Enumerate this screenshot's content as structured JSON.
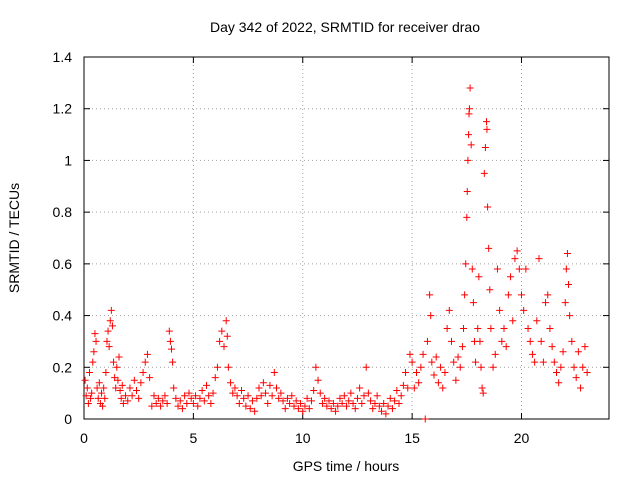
{
  "chart_data": {
    "type": "scatter",
    "title": "Day 342 of 2022, SRMTID for receiver drao",
    "xlabel": "GPS time / hours",
    "ylabel": "SRMTID / TECUs",
    "xlim": [
      0,
      24
    ],
    "ylim": [
      0,
      1.4
    ],
    "xticks": [
      0,
      5,
      10,
      15,
      20
    ],
    "xtick_labels": [
      "0",
      "5",
      "10",
      "15",
      "20"
    ],
    "yticks": [
      0,
      0.2,
      0.4,
      0.6,
      0.8,
      1,
      1.2,
      1.4
    ],
    "ytick_labels": [
      "0",
      "0.2",
      "0.4",
      "0.6",
      "0.8",
      "1",
      "1.2",
      "1.4"
    ],
    "grid": true,
    "marker": "+",
    "color": "#ff0000",
    "series": [
      {
        "name": "SRMTID",
        "points": [
          [
            0.05,
            0.15
          ],
          [
            0.1,
            0.09
          ],
          [
            0.15,
            0.12
          ],
          [
            0.2,
            0.06
          ],
          [
            0.25,
            0.18
          ],
          [
            0.3,
            0.08
          ],
          [
            0.35,
            0.1
          ],
          [
            0.4,
            0.22
          ],
          [
            0.45,
            0.26
          ],
          [
            0.5,
            0.33
          ],
          [
            0.55,
            0.3
          ],
          [
            0.6,
            0.12
          ],
          [
            0.65,
            0.08
          ],
          [
            0.7,
            0.14
          ],
          [
            0.75,
            0.06
          ],
          [
            0.8,
            0.1
          ],
          [
            0.85,
            0.05
          ],
          [
            0.9,
            0.12
          ],
          [
            0.95,
            0.08
          ],
          [
            1.0,
            0.18
          ],
          [
            1.05,
            0.3
          ],
          [
            1.1,
            0.34
          ],
          [
            1.15,
            0.28
          ],
          [
            1.2,
            0.38
          ],
          [
            1.25,
            0.42
          ],
          [
            1.3,
            0.36
          ],
          [
            1.35,
            0.22
          ],
          [
            1.4,
            0.16
          ],
          [
            1.45,
            0.12
          ],
          [
            1.5,
            0.2
          ],
          [
            1.55,
            0.15
          ],
          [
            1.6,
            0.24
          ],
          [
            1.65,
            0.11
          ],
          [
            1.7,
            0.08
          ],
          [
            1.75,
            0.13
          ],
          [
            1.8,
            0.06
          ],
          [
            1.9,
            0.09
          ],
          [
            2.0,
            0.07
          ],
          [
            2.1,
            0.12
          ],
          [
            2.2,
            0.09
          ],
          [
            2.3,
            0.15
          ],
          [
            2.4,
            0.11
          ],
          [
            2.5,
            0.08
          ],
          [
            2.6,
            0.14
          ],
          [
            2.7,
            0.18
          ],
          [
            2.8,
            0.22
          ],
          [
            2.9,
            0.25
          ],
          [
            3.0,
            0.16
          ],
          [
            3.1,
            0.05
          ],
          [
            3.2,
            0.09
          ],
          [
            3.3,
            0.06
          ],
          [
            3.4,
            0.08
          ],
          [
            3.5,
            0.05
          ],
          [
            3.6,
            0.07
          ],
          [
            3.7,
            0.09
          ],
          [
            3.8,
            0.06
          ],
          [
            3.9,
            0.34
          ],
          [
            3.95,
            0.3
          ],
          [
            4.0,
            0.27
          ],
          [
            4.05,
            0.22
          ],
          [
            4.1,
            0.12
          ],
          [
            4.2,
            0.08
          ],
          [
            4.3,
            0.05
          ],
          [
            4.4,
            0.07
          ],
          [
            4.5,
            0.04
          ],
          [
            4.6,
            0.09
          ],
          [
            4.7,
            0.06
          ],
          [
            4.8,
            0.1
          ],
          [
            4.9,
            0.08
          ],
          [
            5.0,
            0.06
          ],
          [
            5.1,
            0.09
          ],
          [
            5.2,
            0.05
          ],
          [
            5.3,
            0.08
          ],
          [
            5.4,
            0.11
          ],
          [
            5.5,
            0.07
          ],
          [
            5.6,
            0.13
          ],
          [
            5.7,
            0.09
          ],
          [
            5.8,
            0.06
          ],
          [
            5.9,
            0.1
          ],
          [
            6.0,
            0.16
          ],
          [
            6.1,
            0.2
          ],
          [
            6.2,
            0.3
          ],
          [
            6.3,
            0.34
          ],
          [
            6.4,
            0.28
          ],
          [
            6.5,
            0.38
          ],
          [
            6.55,
            0.32
          ],
          [
            6.6,
            0.2
          ],
          [
            6.7,
            0.14
          ],
          [
            6.8,
            0.1
          ],
          [
            6.9,
            0.12
          ],
          [
            7.0,
            0.09
          ],
          [
            7.1,
            0.06
          ],
          [
            7.2,
            0.11
          ],
          [
            7.3,
            0.08
          ],
          [
            7.4,
            0.05
          ],
          [
            7.5,
            0.09
          ],
          [
            7.6,
            0.04
          ],
          [
            7.7,
            0.07
          ],
          [
            7.8,
            0.03
          ],
          [
            7.9,
            0.08
          ],
          [
            8.0,
            0.12
          ],
          [
            8.1,
            0.09
          ],
          [
            8.2,
            0.14
          ],
          [
            8.3,
            0.1
          ],
          [
            8.4,
            0.06
          ],
          [
            8.5,
            0.13
          ],
          [
            8.6,
            0.09
          ],
          [
            8.7,
            0.18
          ],
          [
            8.8,
            0.12
          ],
          [
            8.9,
            0.08
          ],
          [
            9.0,
            0.1
          ],
          [
            9.1,
            0.07
          ],
          [
            9.2,
            0.04
          ],
          [
            9.3,
            0.08
          ],
          [
            9.4,
            0.06
          ],
          [
            9.5,
            0.09
          ],
          [
            9.6,
            0.05
          ],
          [
            9.7,
            0.07
          ],
          [
            9.8,
            0.04
          ],
          [
            9.9,
            0.06
          ],
          [
            10.0,
            0.03
          ],
          [
            10.1,
            0.05
          ],
          [
            10.2,
            0.08
          ],
          [
            10.3,
            0.04
          ],
          [
            10.4,
            0.07
          ],
          [
            10.5,
            0.11
          ],
          [
            10.6,
            0.2
          ],
          [
            10.7,
            0.15
          ],
          [
            10.8,
            0.1
          ],
          [
            10.9,
            0.06
          ],
          [
            11.0,
            0.08
          ],
          [
            11.1,
            0.05
          ],
          [
            11.2,
            0.07
          ],
          [
            11.3,
            0.04
          ],
          [
            11.4,
            0.06
          ],
          [
            11.5,
            0.03
          ],
          [
            11.6,
            0.05
          ],
          [
            11.7,
            0.08
          ],
          [
            11.8,
            0.06
          ],
          [
            11.9,
            0.09
          ],
          [
            12.0,
            0.05
          ],
          [
            12.1,
            0.07
          ],
          [
            12.2,
            0.1
          ],
          [
            12.3,
            0.06
          ],
          [
            12.4,
            0.04
          ],
          [
            12.5,
            0.08
          ],
          [
            12.6,
            0.12
          ],
          [
            12.7,
            0.06
          ],
          [
            12.8,
            0.09
          ],
          [
            12.9,
            0.2
          ],
          [
            13.0,
            0.1
          ],
          [
            13.1,
            0.07
          ],
          [
            13.2,
            0.04
          ],
          [
            13.3,
            0.06
          ],
          [
            13.4,
            0.09
          ],
          [
            13.5,
            0.05
          ],
          [
            13.6,
            0.03
          ],
          [
            13.7,
            0.06
          ],
          [
            13.8,
            0.02
          ],
          [
            13.9,
            0.05
          ],
          [
            14.0,
            0.08
          ],
          [
            14.1,
            0.04
          ],
          [
            14.2,
            0.07
          ],
          [
            14.3,
            0.11
          ],
          [
            14.4,
            0.06
          ],
          [
            14.5,
            0.09
          ],
          [
            14.6,
            0.13
          ],
          [
            14.7,
            0.18
          ],
          [
            14.8,
            0.12
          ],
          [
            14.9,
            0.25
          ],
          [
            15.0,
            0.22
          ],
          [
            15.1,
            0.12
          ],
          [
            15.2,
            0.18
          ],
          [
            15.3,
            0.14
          ],
          [
            15.4,
            0.2
          ],
          [
            15.5,
            0.25
          ],
          [
            15.6,
            0.0
          ],
          [
            15.7,
            0.3
          ],
          [
            15.8,
            0.48
          ],
          [
            15.85,
            0.4
          ],
          [
            15.9,
            0.22
          ],
          [
            16.0,
            0.17
          ],
          [
            16.1,
            0.24
          ],
          [
            16.2,
            0.14
          ],
          [
            16.3,
            0.2
          ],
          [
            16.4,
            0.12
          ],
          [
            16.5,
            0.18
          ],
          [
            16.6,
            0.35
          ],
          [
            16.7,
            0.42
          ],
          [
            16.8,
            0.3
          ],
          [
            16.9,
            0.22
          ],
          [
            17.0,
            0.15
          ],
          [
            17.1,
            0.24
          ],
          [
            17.2,
            0.2
          ],
          [
            17.3,
            0.28
          ],
          [
            17.35,
            0.35
          ],
          [
            17.4,
            0.48
          ],
          [
            17.45,
            0.6
          ],
          [
            17.5,
            0.78
          ],
          [
            17.52,
            0.88
          ],
          [
            17.55,
            1.0
          ],
          [
            17.58,
            1.1
          ],
          [
            17.6,
            1.18
          ],
          [
            17.62,
            1.2
          ],
          [
            17.65,
            1.28
          ],
          [
            17.7,
            1.06
          ],
          [
            17.75,
            0.58
          ],
          [
            17.8,
            0.45
          ],
          [
            17.85,
            0.3
          ],
          [
            17.9,
            0.22
          ],
          [
            18.0,
            0.35
          ],
          [
            18.05,
            0.55
          ],
          [
            18.1,
            0.3
          ],
          [
            18.15,
            0.2
          ],
          [
            18.2,
            0.12
          ],
          [
            18.25,
            0.1
          ],
          [
            18.3,
            0.95
          ],
          [
            18.35,
            1.05
          ],
          [
            18.4,
            1.15
          ],
          [
            18.42,
            1.12
          ],
          [
            18.45,
            0.82
          ],
          [
            18.5,
            0.66
          ],
          [
            18.55,
            0.5
          ],
          [
            18.6,
            0.35
          ],
          [
            18.7,
            0.2
          ],
          [
            18.8,
            0.25
          ],
          [
            18.9,
            0.58
          ],
          [
            19.0,
            0.42
          ],
          [
            19.1,
            0.3
          ],
          [
            19.2,
            0.35
          ],
          [
            19.3,
            0.28
          ],
          [
            19.4,
            0.48
          ],
          [
            19.5,
            0.55
          ],
          [
            19.6,
            0.38
          ],
          [
            19.7,
            0.62
          ],
          [
            19.8,
            0.65
          ],
          [
            19.9,
            0.58
          ],
          [
            20.0,
            0.48
          ],
          [
            20.1,
            0.42
          ],
          [
            20.2,
            0.58
          ],
          [
            20.3,
            0.35
          ],
          [
            20.4,
            0.3
          ],
          [
            20.5,
            0.25
          ],
          [
            20.6,
            0.22
          ],
          [
            20.7,
            0.38
          ],
          [
            20.8,
            0.62
          ],
          [
            20.9,
            0.3
          ],
          [
            21.0,
            0.22
          ],
          [
            21.1,
            0.45
          ],
          [
            21.2,
            0.48
          ],
          [
            21.3,
            0.35
          ],
          [
            21.4,
            0.28
          ],
          [
            21.5,
            0.22
          ],
          [
            21.6,
            0.18
          ],
          [
            21.7,
            0.14
          ],
          [
            21.8,
            0.2
          ],
          [
            21.9,
            0.26
          ],
          [
            22.0,
            0.45
          ],
          [
            22.05,
            0.58
          ],
          [
            22.1,
            0.64
          ],
          [
            22.15,
            0.52
          ],
          [
            22.2,
            0.4
          ],
          [
            22.3,
            0.3
          ],
          [
            22.4,
            0.2
          ],
          [
            22.5,
            0.16
          ],
          [
            22.6,
            0.26
          ],
          [
            22.7,
            0.12
          ],
          [
            22.8,
            0.2
          ],
          [
            22.9,
            0.28
          ],
          [
            23.0,
            0.18
          ]
        ]
      }
    ]
  }
}
